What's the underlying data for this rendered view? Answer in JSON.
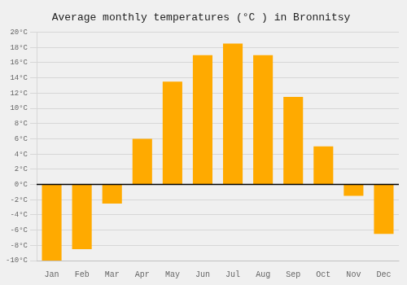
{
  "chart_data": {
    "type": "bar",
    "title": "Average monthly temperatures (°C ) in Bronnitsy",
    "categories": [
      "Jan",
      "Feb",
      "Mar",
      "Apr",
      "May",
      "Jun",
      "Jul",
      "Aug",
      "Sep",
      "Oct",
      "Nov",
      "Dec"
    ],
    "values": [
      -10,
      -8.5,
      -2.5,
      6,
      13.5,
      17,
      18.5,
      17,
      11.5,
      5,
      -1.5,
      -6.5
    ],
    "color": "#FFAA00",
    "ylim": [
      -10,
      20
    ],
    "yticks": [
      {
        "value": -10,
        "label": "-10°C"
      },
      {
        "value": -8,
        "label": "-8°C"
      },
      {
        "value": -6,
        "label": "-6°C"
      },
      {
        "value": -4,
        "label": "-4°C"
      },
      {
        "value": -2,
        "label": "-2°C"
      },
      {
        "value": 0,
        "label": "0°C"
      },
      {
        "value": 2,
        "label": "2°C"
      },
      {
        "value": 4,
        "label": "4°C"
      },
      {
        "value": 6,
        "label": "6°C"
      },
      {
        "value": 8,
        "label": "8°C"
      },
      {
        "value": 10,
        "label": "10°C"
      },
      {
        "value": 12,
        "label": "12°C"
      },
      {
        "value": 14,
        "label": "14°C"
      },
      {
        "value": 16,
        "label": "16°C"
      },
      {
        "value": 18,
        "label": "18°C"
      },
      {
        "value": 20,
        "label": "20°C"
      }
    ],
    "grid": true
  }
}
